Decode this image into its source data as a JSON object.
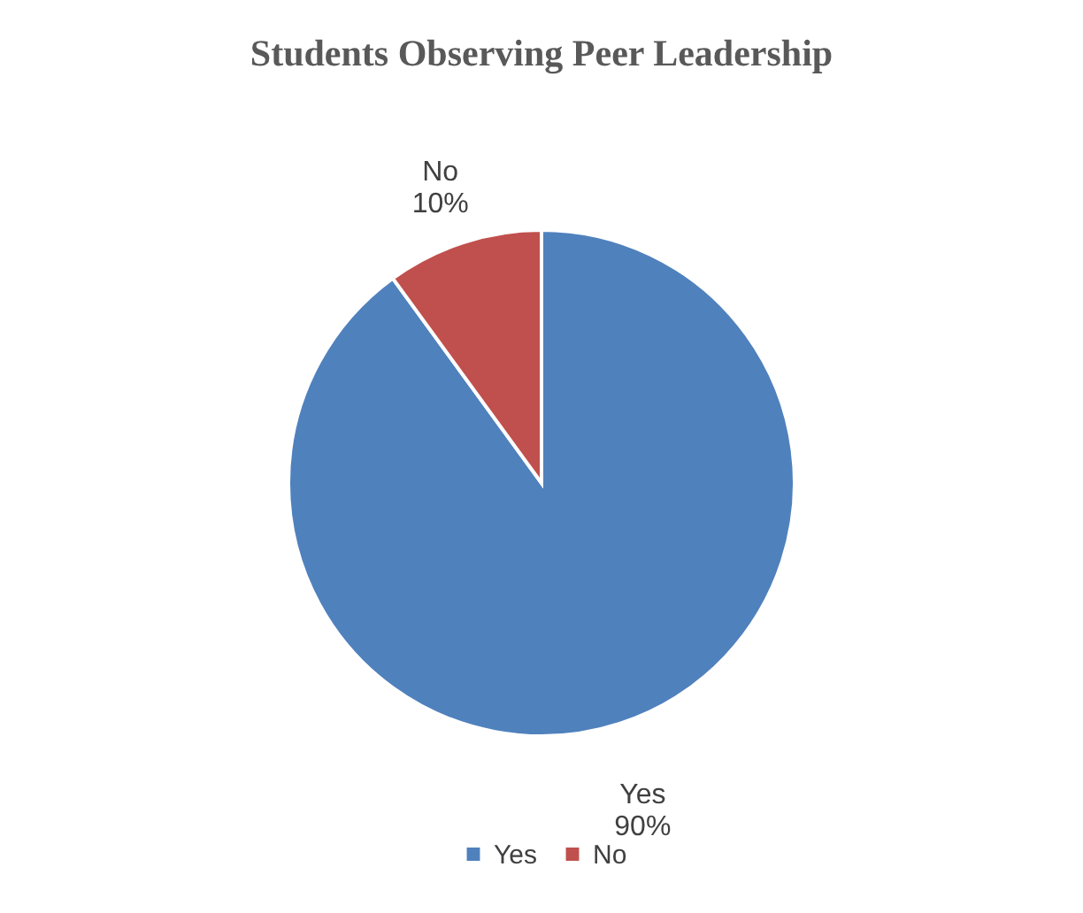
{
  "chart_data": {
    "type": "pie",
    "title": "Students Observing Peer Leadership",
    "categories": [
      "Yes",
      "No"
    ],
    "values": [
      90,
      10
    ],
    "value_labels": [
      "90%",
      "10%"
    ],
    "colors": [
      "#4f81bd",
      "#c0504d"
    ],
    "legend": "bottom"
  }
}
